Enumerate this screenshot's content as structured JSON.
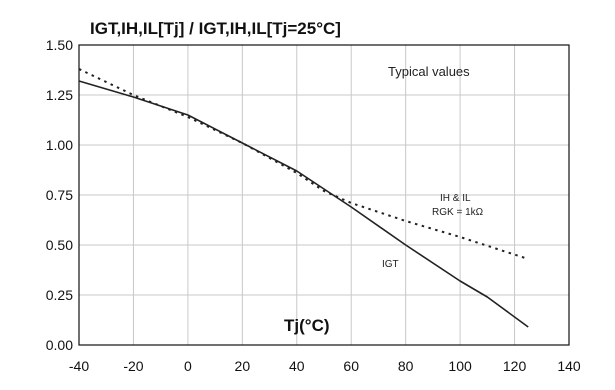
{
  "chart_data": {
    "type": "line",
    "title": "IGT,IH,IL[Tj] / IGT,IH,IL[Tj=25°C]",
    "xlabel": "Tj(°C)",
    "ylabel": "",
    "xlim": [
      -40,
      140
    ],
    "ylim": [
      0,
      1.5
    ],
    "x_ticks": [
      "-40",
      "-20",
      "0",
      "20",
      "40",
      "60",
      "80",
      "100",
      "120",
      "140"
    ],
    "y_ticks": [
      "0.00",
      "0.25",
      "0.50",
      "0.75",
      "1.00",
      "1.25",
      "1.50"
    ],
    "grid": true,
    "legend": "none",
    "annotations": {
      "typical": "Typical values",
      "ih_il": "IH & IL",
      "rgk": "RGK = 1kΩ",
      "igt": "IGT"
    },
    "series": [
      {
        "name": "IH & IL",
        "style": "dotted",
        "color": "#222222",
        "x": [
          -40,
          -20,
          0,
          20,
          40,
          50,
          60,
          80,
          100,
          125
        ],
        "y": [
          1.38,
          1.25,
          1.14,
          1.01,
          0.86,
          0.77,
          0.71,
          0.62,
          0.54,
          0.43
        ]
      },
      {
        "name": "IGT",
        "style": "solid",
        "color": "#222222",
        "x": [
          -40,
          -20,
          0,
          20,
          40,
          50,
          60,
          80,
          100,
          110,
          125
        ],
        "y": [
          1.32,
          1.24,
          1.15,
          1.01,
          0.87,
          0.78,
          0.69,
          0.5,
          0.32,
          0.24,
          0.09
        ]
      }
    ]
  }
}
